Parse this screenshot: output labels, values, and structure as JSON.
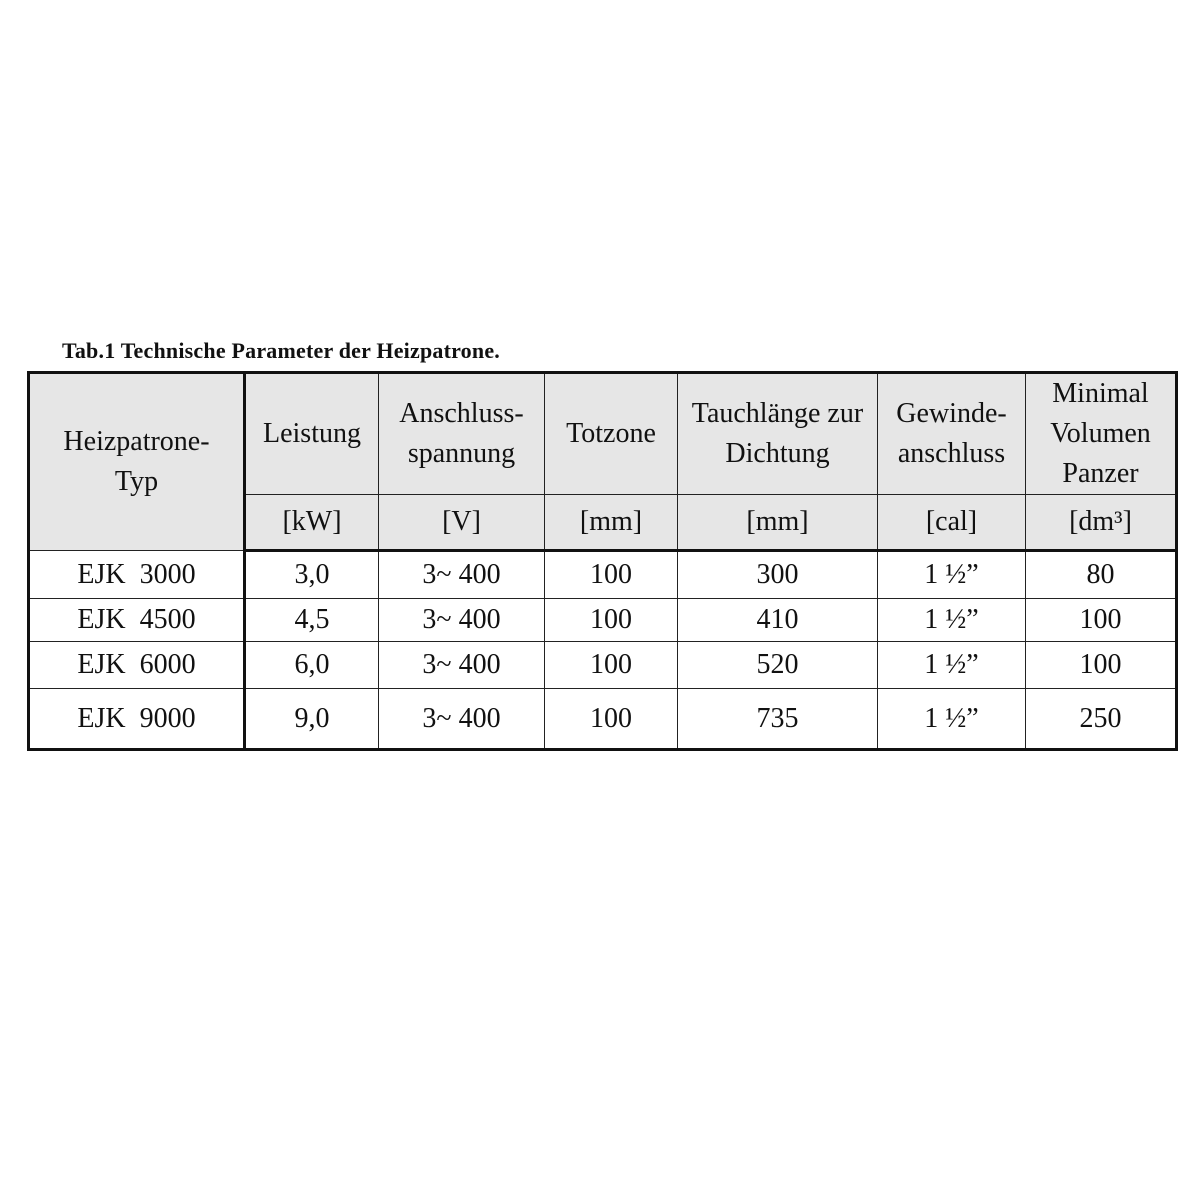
{
  "caption": "Tab.1 Technische Parameter der Heizpatrone.",
  "header": {
    "type_label": "Heizpatrone-\nTyp",
    "columns": [
      {
        "name": "Leistung",
        "unit": "[kW]"
      },
      {
        "name": "Anschluss-\nspannung",
        "unit": "[V]"
      },
      {
        "name": "Totzone",
        "unit": "[mm]"
      },
      {
        "name": "Tauchlänge zur\nDichtung",
        "unit": "[mm]"
      },
      {
        "name": "Gewinde-\nanschluss",
        "unit": "[cal]"
      },
      {
        "name": "Minimal\nVolumen\nPanzer",
        "unit": "[dm³]"
      }
    ]
  },
  "rows": [
    [
      "EJK  3000",
      "3,0",
      "3~ 400",
      "100",
      "300",
      "1 ½”",
      "80"
    ],
    [
      "EJK  4500",
      "4,5",
      "3~ 400",
      "100",
      "410",
      "1 ½”",
      "100"
    ],
    [
      "EJK  6000",
      "6,0",
      "3~ 400",
      "100",
      "520",
      "1 ½”",
      "100"
    ],
    [
      "EJK  9000",
      "9,0",
      "3~ 400",
      "100",
      "735",
      "1 ½”",
      "250"
    ]
  ],
  "colors": {
    "header_bg": "#e6e6e6",
    "border": "#111111"
  }
}
